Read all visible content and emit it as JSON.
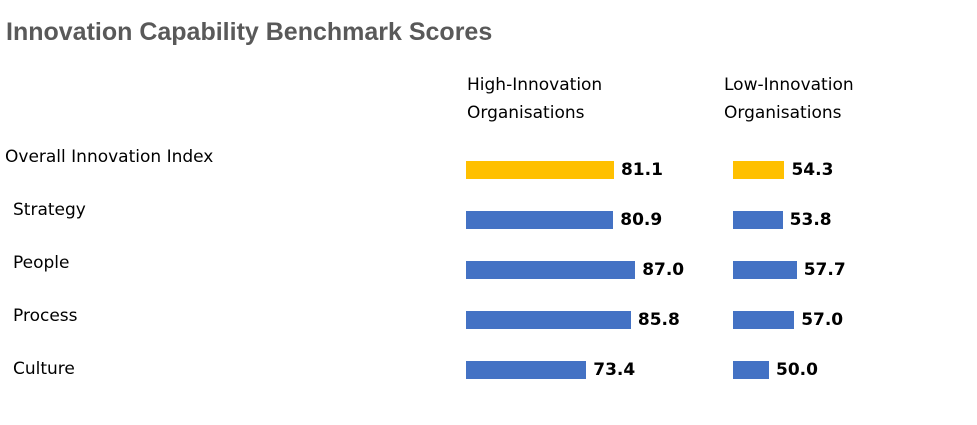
{
  "chart_data": {
    "type": "bar",
    "orientation": "horizontal",
    "title": "Innovation Capability Benchmark Scores",
    "categories": [
      "Overall Innovation Index",
      "Strategy",
      "People",
      "Process",
      "Culture"
    ],
    "xlim": [
      40,
      100
    ],
    "series": [
      {
        "name": "High-Innovation Organisations",
        "colors": [
          "#ffc000",
          "#4472c4",
          "#4472c4",
          "#4472c4",
          "#4472c4"
        ],
        "values": [
          81.1,
          80.9,
          87.0,
          85.8,
          73.4
        ],
        "value_labels": [
          "81.1",
          "80.9",
          "87.0",
          "85.8",
          "73.4"
        ]
      },
      {
        "name": "Low-Innovation Organisations",
        "colors": [
          "#ffc000",
          "#4472c4",
          "#4472c4",
          "#4472c4",
          "#4472c4"
        ],
        "values": [
          54.3,
          53.8,
          57.7,
          57.0,
          50.0
        ],
        "value_labels": [
          "54.3",
          "53.8",
          "57.7",
          "57.0",
          "50.0"
        ]
      }
    ]
  }
}
